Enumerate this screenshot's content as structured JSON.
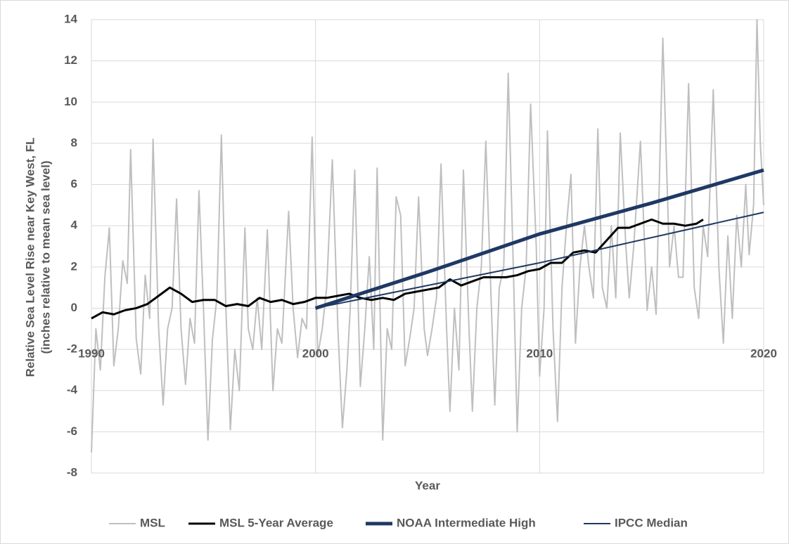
{
  "chart_data": {
    "type": "line",
    "xlabel": "Year",
    "ylabel_lines": [
      "Relative Sea Level Rise near Key West, FL",
      "(inches relative to mean sea level)"
    ],
    "xlim": [
      1990,
      2020
    ],
    "xticks": [
      1990,
      2000,
      2010,
      2020
    ],
    "ylim": [
      -8,
      14
    ],
    "yticks": [
      -8,
      -6,
      -4,
      -2,
      0,
      2,
      4,
      6,
      8,
      10,
      12,
      14
    ],
    "grid": true,
    "legend": "bottom",
    "series": [
      {
        "name": "MSL",
        "color": "#bfbfbf",
        "width": 2,
        "x": [
          1990.0,
          1990.2,
          1990.4,
          1990.6,
          1990.8,
          1991.0,
          1991.2,
          1991.4,
          1991.6,
          1991.75,
          1992.0,
          1992.2,
          1992.4,
          1992.6,
          1992.75,
          1993.0,
          1993.2,
          1993.4,
          1993.6,
          1993.8,
          1994.0,
          1994.2,
          1994.4,
          1994.6,
          1994.8,
          1995.0,
          1995.2,
          1995.4,
          1995.6,
          1995.8,
          1996.0,
          1996.2,
          1996.4,
          1996.6,
          1996.85,
          1997.0,
          1997.2,
          1997.4,
          1997.6,
          1997.85,
          1998.1,
          1998.3,
          1998.5,
          1998.8,
          1999.0,
          1999.2,
          1999.4,
          1999.6,
          1999.85,
          2000.1,
          2000.3,
          2000.5,
          2000.75,
          2001.0,
          2001.2,
          2001.4,
          2001.55,
          2001.75,
          2002.0,
          2002.2,
          2002.4,
          2002.6,
          2002.75,
          2003.0,
          2003.2,
          2003.4,
          2003.6,
          2003.8,
          2004.0,
          2004.2,
          2004.4,
          2004.6,
          2004.85,
          2005.0,
          2005.2,
          2005.4,
          2005.6,
          2005.85,
          2006.0,
          2006.2,
          2006.4,
          2006.6,
          2006.85,
          2007.0,
          2007.2,
          2007.4,
          2007.6,
          2007.85,
          2008.0,
          2008.2,
          2008.4,
          2008.6,
          2008.85,
          2009.0,
          2009.2,
          2009.4,
          2009.6,
          2009.85,
          2010.0,
          2010.2,
          2010.35,
          2010.6,
          2010.8,
          2011.0,
          2011.2,
          2011.4,
          2011.6,
          2011.8,
          2012.0,
          2012.2,
          2012.4,
          2012.6,
          2012.8,
          2013.0,
          2013.2,
          2013.4,
          2013.6,
          2013.85,
          2014.0,
          2014.2,
          2014.5,
          2014.8,
          2015.0,
          2015.2,
          2015.5,
          2015.8,
          2016.0,
          2016.2,
          2016.4,
          2016.65,
          2016.9,
          2017.1,
          2017.3,
          2017.5,
          2017.75,
          2018.0,
          2018.2,
          2018.4,
          2018.6,
          2018.8,
          2019.0,
          2019.2,
          2019.35,
          2019.55,
          2019.7,
          2019.85,
          2020.0
        ],
        "values": [
          -7,
          -1,
          -3,
          1.5,
          3.9,
          -2.8,
          -1,
          2.3,
          1.2,
          7.7,
          -1.5,
          -3.2,
          1.6,
          -0.5,
          8.2,
          -1,
          -4.7,
          -1,
          0,
          5.3,
          -1,
          -3.7,
          -0.5,
          -1.7,
          5.7,
          0,
          -6.4,
          -1.5,
          0.5,
          8.4,
          0,
          -5.9,
          -2,
          -4,
          3.9,
          -1,
          -2,
          0.5,
          -2,
          3.8,
          -4,
          -1,
          -1.7,
          4.7,
          0,
          -2.4,
          -0.5,
          -1,
          8.3,
          -2.3,
          -1,
          1,
          7.2,
          -1,
          -5.8,
          -3,
          0,
          6.7,
          -3.8,
          -1,
          2.5,
          -2,
          6.8,
          -6.4,
          -1,
          -2,
          5.4,
          4.5,
          -2.8,
          -1.5,
          0,
          5.4,
          -1,
          -2.3,
          -1,
          0.5,
          7,
          -1,
          -5,
          0,
          -3,
          6.7,
          -1,
          -5,
          0,
          2,
          8.1,
          0,
          -4.7,
          1,
          2,
          11.4,
          1,
          -6,
          0,
          2,
          9.9,
          3,
          -3.3,
          0,
          8.6,
          -1,
          -5.5,
          1,
          4,
          6.5,
          -1.7,
          2,
          4,
          2,
          0.5,
          8.7,
          1,
          0,
          4,
          0.5,
          8.5,
          3,
          0.5,
          3,
          8.1,
          -0.1,
          2,
          -0.3,
          13.1,
          2,
          4,
          1.5,
          1.5,
          10.9,
          1,
          -0.5,
          4,
          2.5,
          10.6,
          2,
          -1.7,
          3.5,
          -0.5,
          4.5,
          2,
          6,
          2.6,
          5,
          14,
          8,
          5
        ]
      },
      {
        "name": "MSL 5-Year Average",
        "color": "#000000",
        "width": 3,
        "x": [
          1990,
          1990.5,
          1991,
          1991.5,
          1992,
          1992.5,
          1993,
          1993.5,
          1994,
          1994.5,
          1995,
          1995.5,
          1996,
          1996.5,
          1997,
          1997.5,
          1998,
          1998.5,
          1999,
          1999.5,
          2000,
          2000.5,
          2001,
          2001.5,
          2002,
          2002.5,
          2003,
          2003.5,
          2004,
          2004.5,
          2005,
          2005.5,
          2006,
          2006.5,
          2007,
          2007.5,
          2008,
          2008.5,
          2009,
          2009.5,
          2010,
          2010.5,
          2011,
          2011.5,
          2012,
          2012.5,
          2013,
          2013.5,
          2014,
          2014.5,
          2015,
          2015.5,
          2016,
          2016.5,
          2017,
          2017.3
        ],
        "values": [
          -0.5,
          -0.2,
          -0.3,
          -0.1,
          0,
          0.2,
          0.6,
          1.0,
          0.7,
          0.3,
          0.4,
          0.4,
          0.1,
          0.2,
          0.1,
          0.5,
          0.3,
          0.4,
          0.2,
          0.3,
          0.5,
          0.5,
          0.6,
          0.7,
          0.5,
          0.4,
          0.5,
          0.4,
          0.7,
          0.8,
          0.9,
          1.0,
          1.4,
          1.1,
          1.3,
          1.5,
          1.5,
          1.5,
          1.6,
          1.8,
          1.9,
          2.2,
          2.2,
          2.7,
          2.8,
          2.7,
          3.3,
          3.9,
          3.9,
          4.1,
          4.3,
          4.1,
          4.1,
          4.0,
          4.1,
          4.3
        ]
      },
      {
        "name": "NOAA Intermediate High",
        "color": "#1f3864",
        "width": 5,
        "x": [
          2000,
          2005,
          2010,
          2015,
          2020
        ],
        "values": [
          0,
          1.75,
          3.6,
          5.1,
          6.7
        ]
      },
      {
        "name": "IPCC Median",
        "color": "#203864",
        "width": 2,
        "x": [
          2000,
          2010,
          2020
        ],
        "values": [
          0,
          2.2,
          4.65
        ]
      }
    ]
  }
}
